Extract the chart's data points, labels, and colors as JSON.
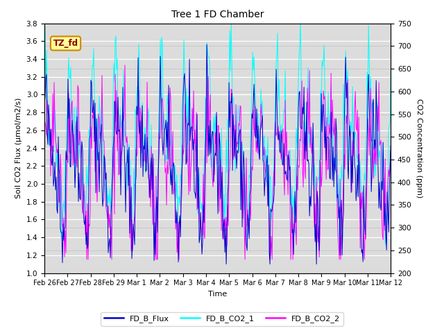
{
  "title": "Tree 1 FD Chamber",
  "xlabel": "Time",
  "ylabel_left": "Soil CO2 Flux (μmol/m2/s)",
  "ylabel_right": "CO2 Concentration (ppm)",
  "ylim_left": [
    1.0,
    3.8
  ],
  "ylim_right": [
    200,
    750
  ],
  "yticks_left": [
    1.0,
    1.2,
    1.4,
    1.6,
    1.8,
    2.0,
    2.2,
    2.4,
    2.6,
    2.8,
    3.0,
    3.2,
    3.4,
    3.6,
    3.8
  ],
  "yticks_right": [
    200,
    250,
    300,
    350,
    400,
    450,
    500,
    550,
    600,
    650,
    700,
    750
  ],
  "xtick_labels": [
    "Feb 26",
    "Feb 27",
    "Feb 28",
    "Feb 29",
    "Mar 1",
    "Mar 2",
    "Mar 3",
    "Mar 4",
    "Mar 5",
    "Mar 6",
    "Mar 7",
    "Mar 8",
    "Mar 9",
    "Mar 10",
    "Mar 11",
    "Mar 12"
  ],
  "color_flux": "#0000CD",
  "color_co2_1": "#00FFFF",
  "color_co2_2": "#FF00FF",
  "bg_color": "#DCDCDC",
  "label_flux": "FD_B_Flux",
  "label_co2_1": "FD_B_CO2_1",
  "label_co2_2": "FD_B_CO2_2",
  "annotation_text": "TZ_fd",
  "annotation_bg": "#FFFF99",
  "annotation_border": "#CC8800",
  "n_points": 500,
  "seed": 42
}
